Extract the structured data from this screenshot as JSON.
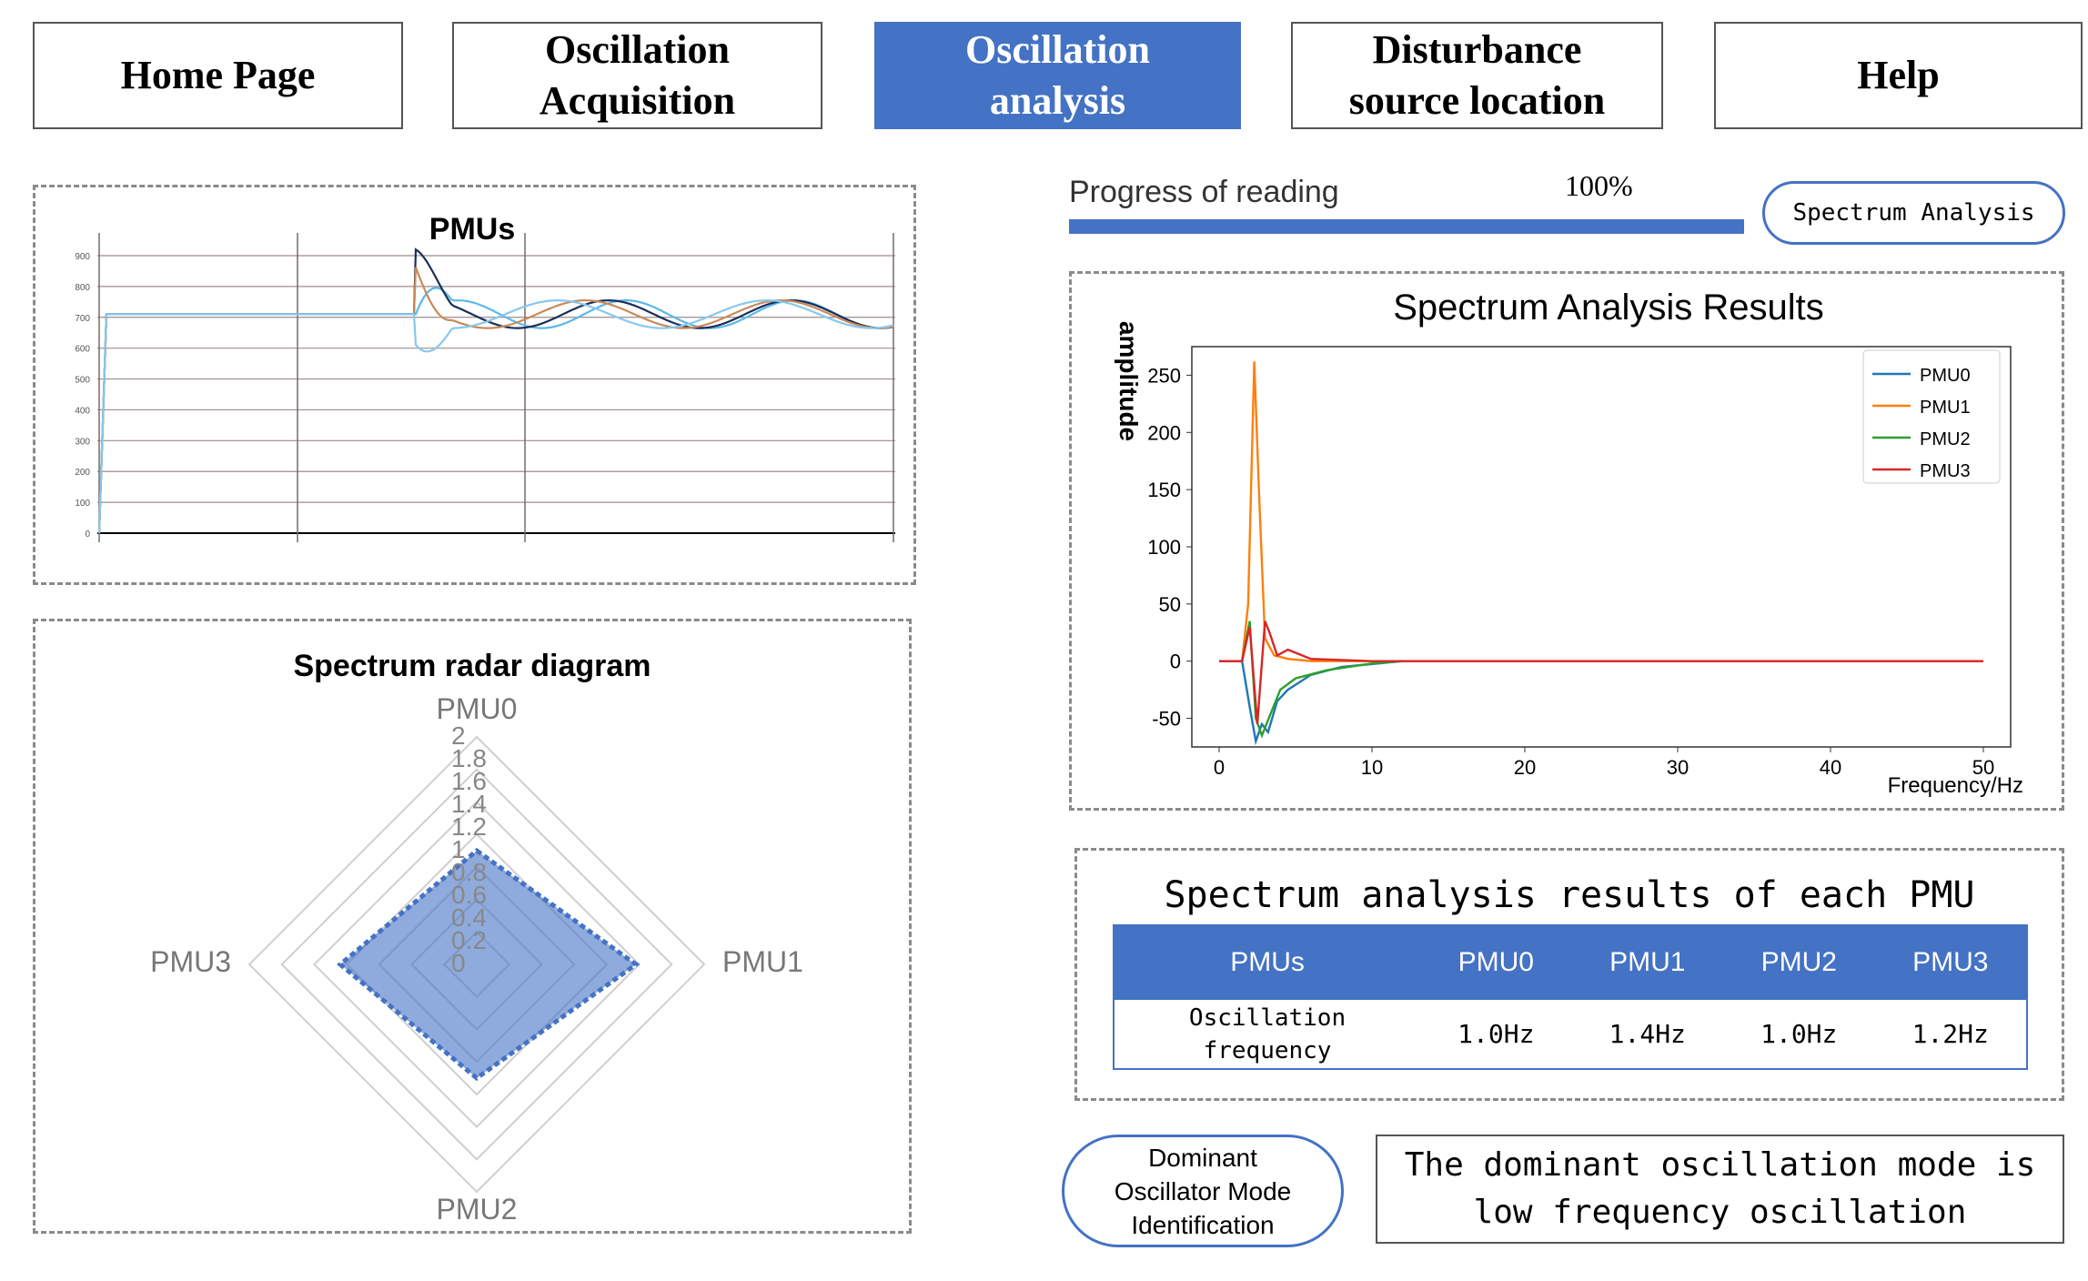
{
  "nav": {
    "home": "Home Page",
    "acquisition": "Oscillation\nAcquisition",
    "analysis": "Oscillation\nanalysis",
    "disturbance": "Disturbance\nsource location",
    "help": "Help"
  },
  "colors": {
    "accent": "#4472c4",
    "pmu0": "#1f77b4",
    "pmu1": "#ff7f0e",
    "pmu2": "#2ca02c",
    "pmu3": "#d62728"
  },
  "progress": {
    "label": "Progress of reading",
    "percent_text": "100%",
    "value": 1.0
  },
  "spectrum_button": "Spectrum Analysis",
  "dominant_button": "Dominant\nOscillator Mode\nIdentification",
  "dominant_result": "The dominant oscillation mode is\nlow frequency oscillation",
  "results_table": {
    "title": "Spectrum analysis results of each PMU",
    "headers": [
      "PMUs",
      "PMU0",
      "PMU1",
      "PMU2",
      "PMU3"
    ],
    "row_label": "Oscillation\nfrequency",
    "values": [
      "1.0Hz",
      "1.4Hz",
      "1.0Hz",
      "1.2Hz"
    ]
  },
  "chart_data": [
    {
      "type": "line",
      "title": "PMUs",
      "ylim": [
        0,
        900
      ],
      "yticks": [
        "0",
        "100",
        "200",
        "300",
        "400",
        "500",
        "600",
        "700",
        "800",
        "900"
      ],
      "grid": true,
      "series_count": 4,
      "description_points": {
        "pre_disturbance_level": 710,
        "oscillation_center": 710,
        "oscillation_amplitude": 45
      }
    },
    {
      "type": "line",
      "title": "Spectrum Analysis Results",
      "xlabel": "Frequency/Hz",
      "ylabel": "amplitude",
      "xlim": [
        0,
        50
      ],
      "ylim": [
        -75,
        275
      ],
      "xticks": [
        "0",
        "10",
        "20",
        "30",
        "40",
        "50"
      ],
      "yticks": [
        "-50",
        "0",
        "50",
        "100",
        "150",
        "200",
        "250"
      ],
      "legend": "top-right",
      "series": [
        {
          "name": "PMU0",
          "x": [
            0,
            1.5,
            2,
            2.4,
            2.8,
            3.2,
            3.8,
            4.5,
            6,
            8,
            12
          ],
          "y": [
            0,
            0,
            -40,
            -70,
            -55,
            -62,
            -35,
            -25,
            -12,
            -5,
            0
          ]
        },
        {
          "name": "PMU1",
          "x": [
            0,
            1.5,
            1.9,
            2.3,
            2.6,
            3.0,
            3.6,
            4.5,
            6,
            10,
            50
          ],
          "y": [
            0,
            0,
            50,
            262,
            150,
            20,
            5,
            2,
            0,
            0,
            0
          ]
        },
        {
          "name": "PMU2",
          "x": [
            0,
            1.5,
            2,
            2.4,
            2.8,
            3.4,
            4,
            5,
            7,
            10,
            12
          ],
          "y": [
            0,
            0,
            35,
            -50,
            -65,
            -45,
            -25,
            -15,
            -8,
            -2,
            0
          ]
        },
        {
          "name": "PMU3",
          "x": [
            0,
            1.5,
            2,
            2.5,
            3,
            3.3,
            3.8,
            4.5,
            6,
            10,
            50
          ],
          "y": [
            0,
            0,
            30,
            -55,
            35,
            25,
            5,
            10,
            2,
            0,
            0
          ]
        }
      ]
    },
    {
      "type": "radar",
      "title": "Spectrum radar diagram",
      "axes": [
        "PMU0",
        "PMU1",
        "PMU2",
        "PMU3"
      ],
      "radial_ticks": [
        "0",
        "0.2",
        "0.4",
        "0.6",
        "0.8",
        "1",
        "1.2",
        "1.4",
        "1.6",
        "1.8",
        "2"
      ],
      "rmax": 2,
      "values": [
        1.0,
        1.4,
        1.0,
        1.2
      ]
    }
  ]
}
